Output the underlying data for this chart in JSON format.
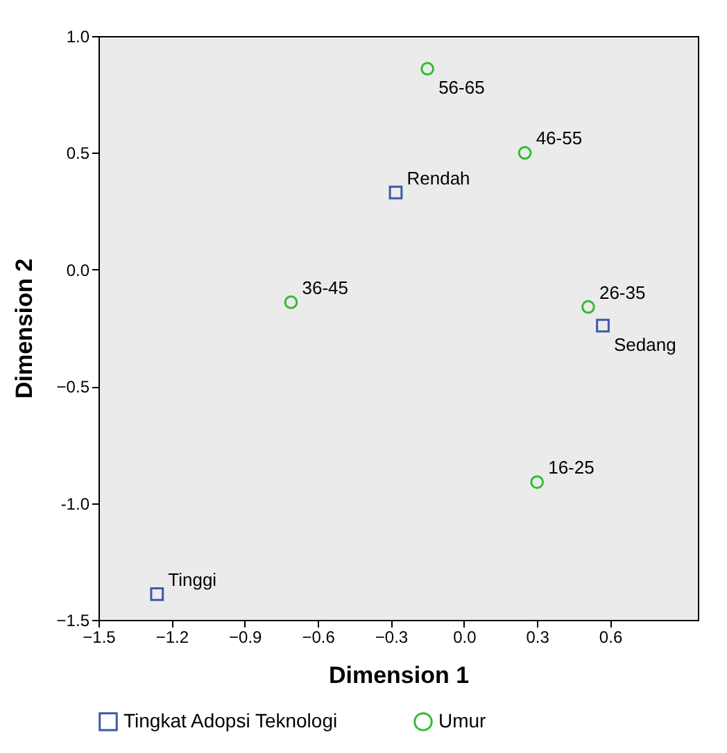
{
  "chart_data": {
    "type": "scatter",
    "xlabel": "Dimension 1",
    "ylabel": "Dimension 2",
    "xlim": [
      -1.5,
      0.96
    ],
    "ylim": [
      -1.5,
      1.0
    ],
    "xticks": [
      -1.5,
      -1.2,
      -0.9,
      -0.6,
      -0.3,
      {
        "value": 0,
        "label": "0.0"
      },
      0.3,
      0.6
    ],
    "yticks": [
      -1.5,
      {
        "value": -1,
        "label": "-1.0"
      },
      -0.5,
      {
        "value": 0,
        "label": "0.0"
      },
      0.5,
      {
        "value": 1,
        "label": "1.0"
      }
    ],
    "grid": false,
    "legend": "bottom",
    "series": [
      {
        "name": "Tingkat Adopsi Teknologi",
        "color": "#3c5aa6",
        "marker": "square",
        "x": [
          -0.28,
          0.57,
          -1.26
        ],
        "values": [
          0.33,
          -0.24,
          -1.39
        ]
      },
      {
        "name": "Umur",
        "color": "#33bb33",
        "marker": "circle",
        "x": [
          -0.15,
          0.25,
          -0.71,
          0.51,
          0.3
        ],
        "values": [
          0.86,
          0.5,
          -0.14,
          -0.16,
          -0.91
        ]
      }
    ],
    "annotations": [
      {
        "text": "Rendah",
        "x": -0.28,
        "y": 0.33
      },
      {
        "text": "Sedang",
        "x": 0.57,
        "y": -0.24
      },
      {
        "text": "Tinggi",
        "x": -1.26,
        "y": -1.39
      },
      {
        "text": "56-65",
        "x": -0.15,
        "y": 0.86
      },
      {
        "text": "46-55",
        "x": 0.25,
        "y": 0.5
      },
      {
        "text": "36-45",
        "x": -0.71,
        "y": -0.14
      },
      {
        "text": "26-35",
        "x": 0.51,
        "y": -0.16
      },
      {
        "text": "16-25",
        "x": 0.3,
        "y": -0.91
      }
    ]
  }
}
